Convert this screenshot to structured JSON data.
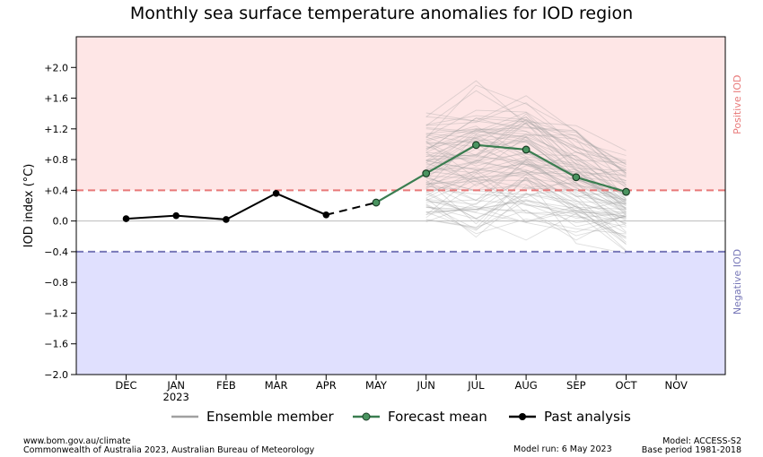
{
  "title": "Monthly sea surface temperature anomalies for IOD region",
  "footer": {
    "source_url": "www.bom.gov.au/climate",
    "copyright": "Commonwealth of Australia 2023, Australian Bureau of Meteorology",
    "model_run": "Model run: 6 May 2023",
    "model": "Model: ACCESS-S2",
    "base_period": "Base period 1981-2018"
  },
  "chart_data": {
    "type": "line",
    "ylabel": "IOD index (°C)",
    "ylim": [
      -2.0,
      2.4
    ],
    "yticks": [
      -2.0,
      -1.6,
      -1.2,
      -0.8,
      -0.4,
      0.0,
      0.4,
      0.8,
      1.2,
      1.6,
      2.0
    ],
    "ytick_labels": [
      "−2.0",
      "−1.6",
      "−1.2",
      "−0.8",
      "−0.4",
      "0.0",
      "+0.4",
      "+0.8",
      "+1.2",
      "+1.6",
      "+2.0"
    ],
    "months": [
      "DEC",
      "JAN",
      "FEB",
      "MAR",
      "APR",
      "MAY",
      "JUN",
      "JUL",
      "AUG",
      "SEP",
      "OCT",
      "NOV"
    ],
    "year_label": {
      "month": "JAN",
      "text": "2023"
    },
    "thresholds": {
      "positive": 0.4,
      "negative": -0.4,
      "positive_label": "Positive IOD",
      "negative_label": "Negative IOD",
      "positive_color": "#e87878",
      "negative_color": "#7878b8",
      "positive_fill": "#fee6e6",
      "negative_fill": "#e0e0fe"
    },
    "series": [
      {
        "name": "Past analysis",
        "color": "#000000",
        "points": [
          {
            "month": "DEC",
            "value": 0.03
          },
          {
            "month": "JAN",
            "value": 0.07
          },
          {
            "month": "FEB",
            "value": 0.02
          },
          {
            "month": "MAR",
            "value": 0.36
          },
          {
            "month": "APR",
            "value": 0.08
          }
        ]
      },
      {
        "name": "Forecast mean",
        "color": "#3a7d50",
        "marker_fill": "#4a9460",
        "points": [
          {
            "month": "MAY",
            "value": 0.24
          },
          {
            "month": "JUN",
            "value": 0.62
          },
          {
            "month": "JUL",
            "value": 0.99
          },
          {
            "month": "AUG",
            "value": 0.93
          },
          {
            "month": "SEP",
            "value": 0.57
          },
          {
            "month": "OCT",
            "value": 0.38
          }
        ]
      }
    ],
    "ensemble": {
      "name": "Ensemble member",
      "color": "#a0a0a0",
      "months": [
        "JUN",
        "JUL",
        "AUG",
        "SEP",
        "OCT"
      ],
      "min": [
        -0.3,
        -0.65,
        -0.45,
        -0.5,
        -0.6
      ],
      "max": [
        1.65,
        2.15,
        2.0,
        1.55,
        1.1
      ]
    },
    "legend": {
      "position": "bottom",
      "entries": [
        "Ensemble member",
        "Forecast mean",
        "Past analysis"
      ]
    }
  }
}
